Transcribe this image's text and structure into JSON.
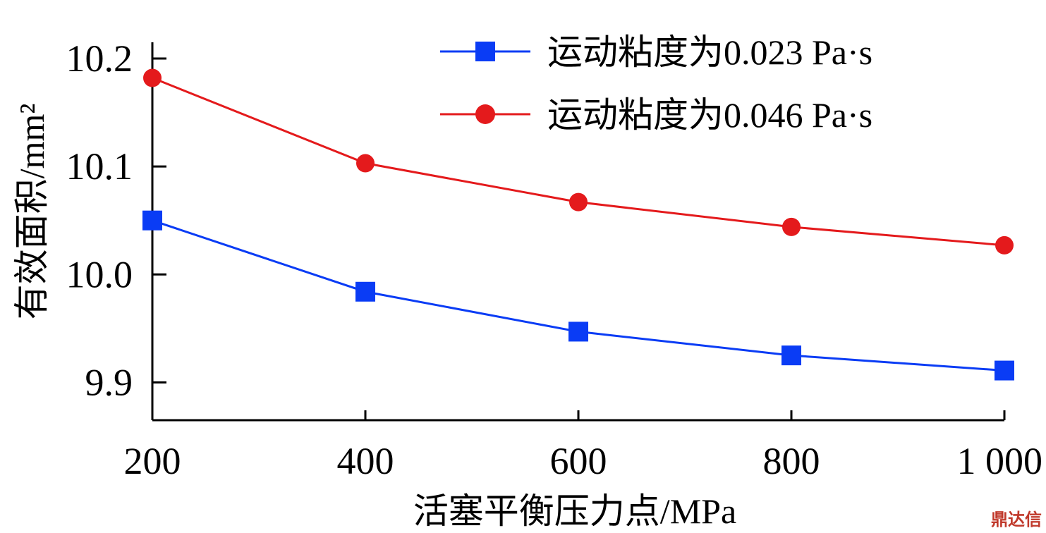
{
  "chart_data": {
    "type": "line",
    "x": [
      200,
      400,
      600,
      800,
      1000
    ],
    "x_tick_labels": [
      "200",
      "400",
      "600",
      "800",
      "1 000"
    ],
    "y_ticks": [
      9.9,
      10.0,
      10.1,
      10.2
    ],
    "y_tick_labels": [
      "9.9",
      "10.0",
      "10.1",
      "10.2"
    ],
    "xlabel": "活塞平衡压力点/MPa",
    "ylabel": "有效面积/mm²",
    "xlim": [
      200,
      1000
    ],
    "ylim": [
      9.865,
      10.215
    ],
    "grid": false,
    "legend_position": "top-right",
    "series": [
      {
        "name": "运动粘度为0.023 Pa·s",
        "marker": "square",
        "color": "#0a3cf5",
        "values": [
          10.05,
          9.984,
          9.947,
          9.925,
          9.911
        ]
      },
      {
        "name": "运动粘度为0.046 Pa·s",
        "marker": "circle",
        "color": "#e41a1c",
        "values": [
          10.182,
          10.103,
          10.067,
          10.044,
          10.027
        ]
      }
    ]
  },
  "watermark": "鼎达信"
}
